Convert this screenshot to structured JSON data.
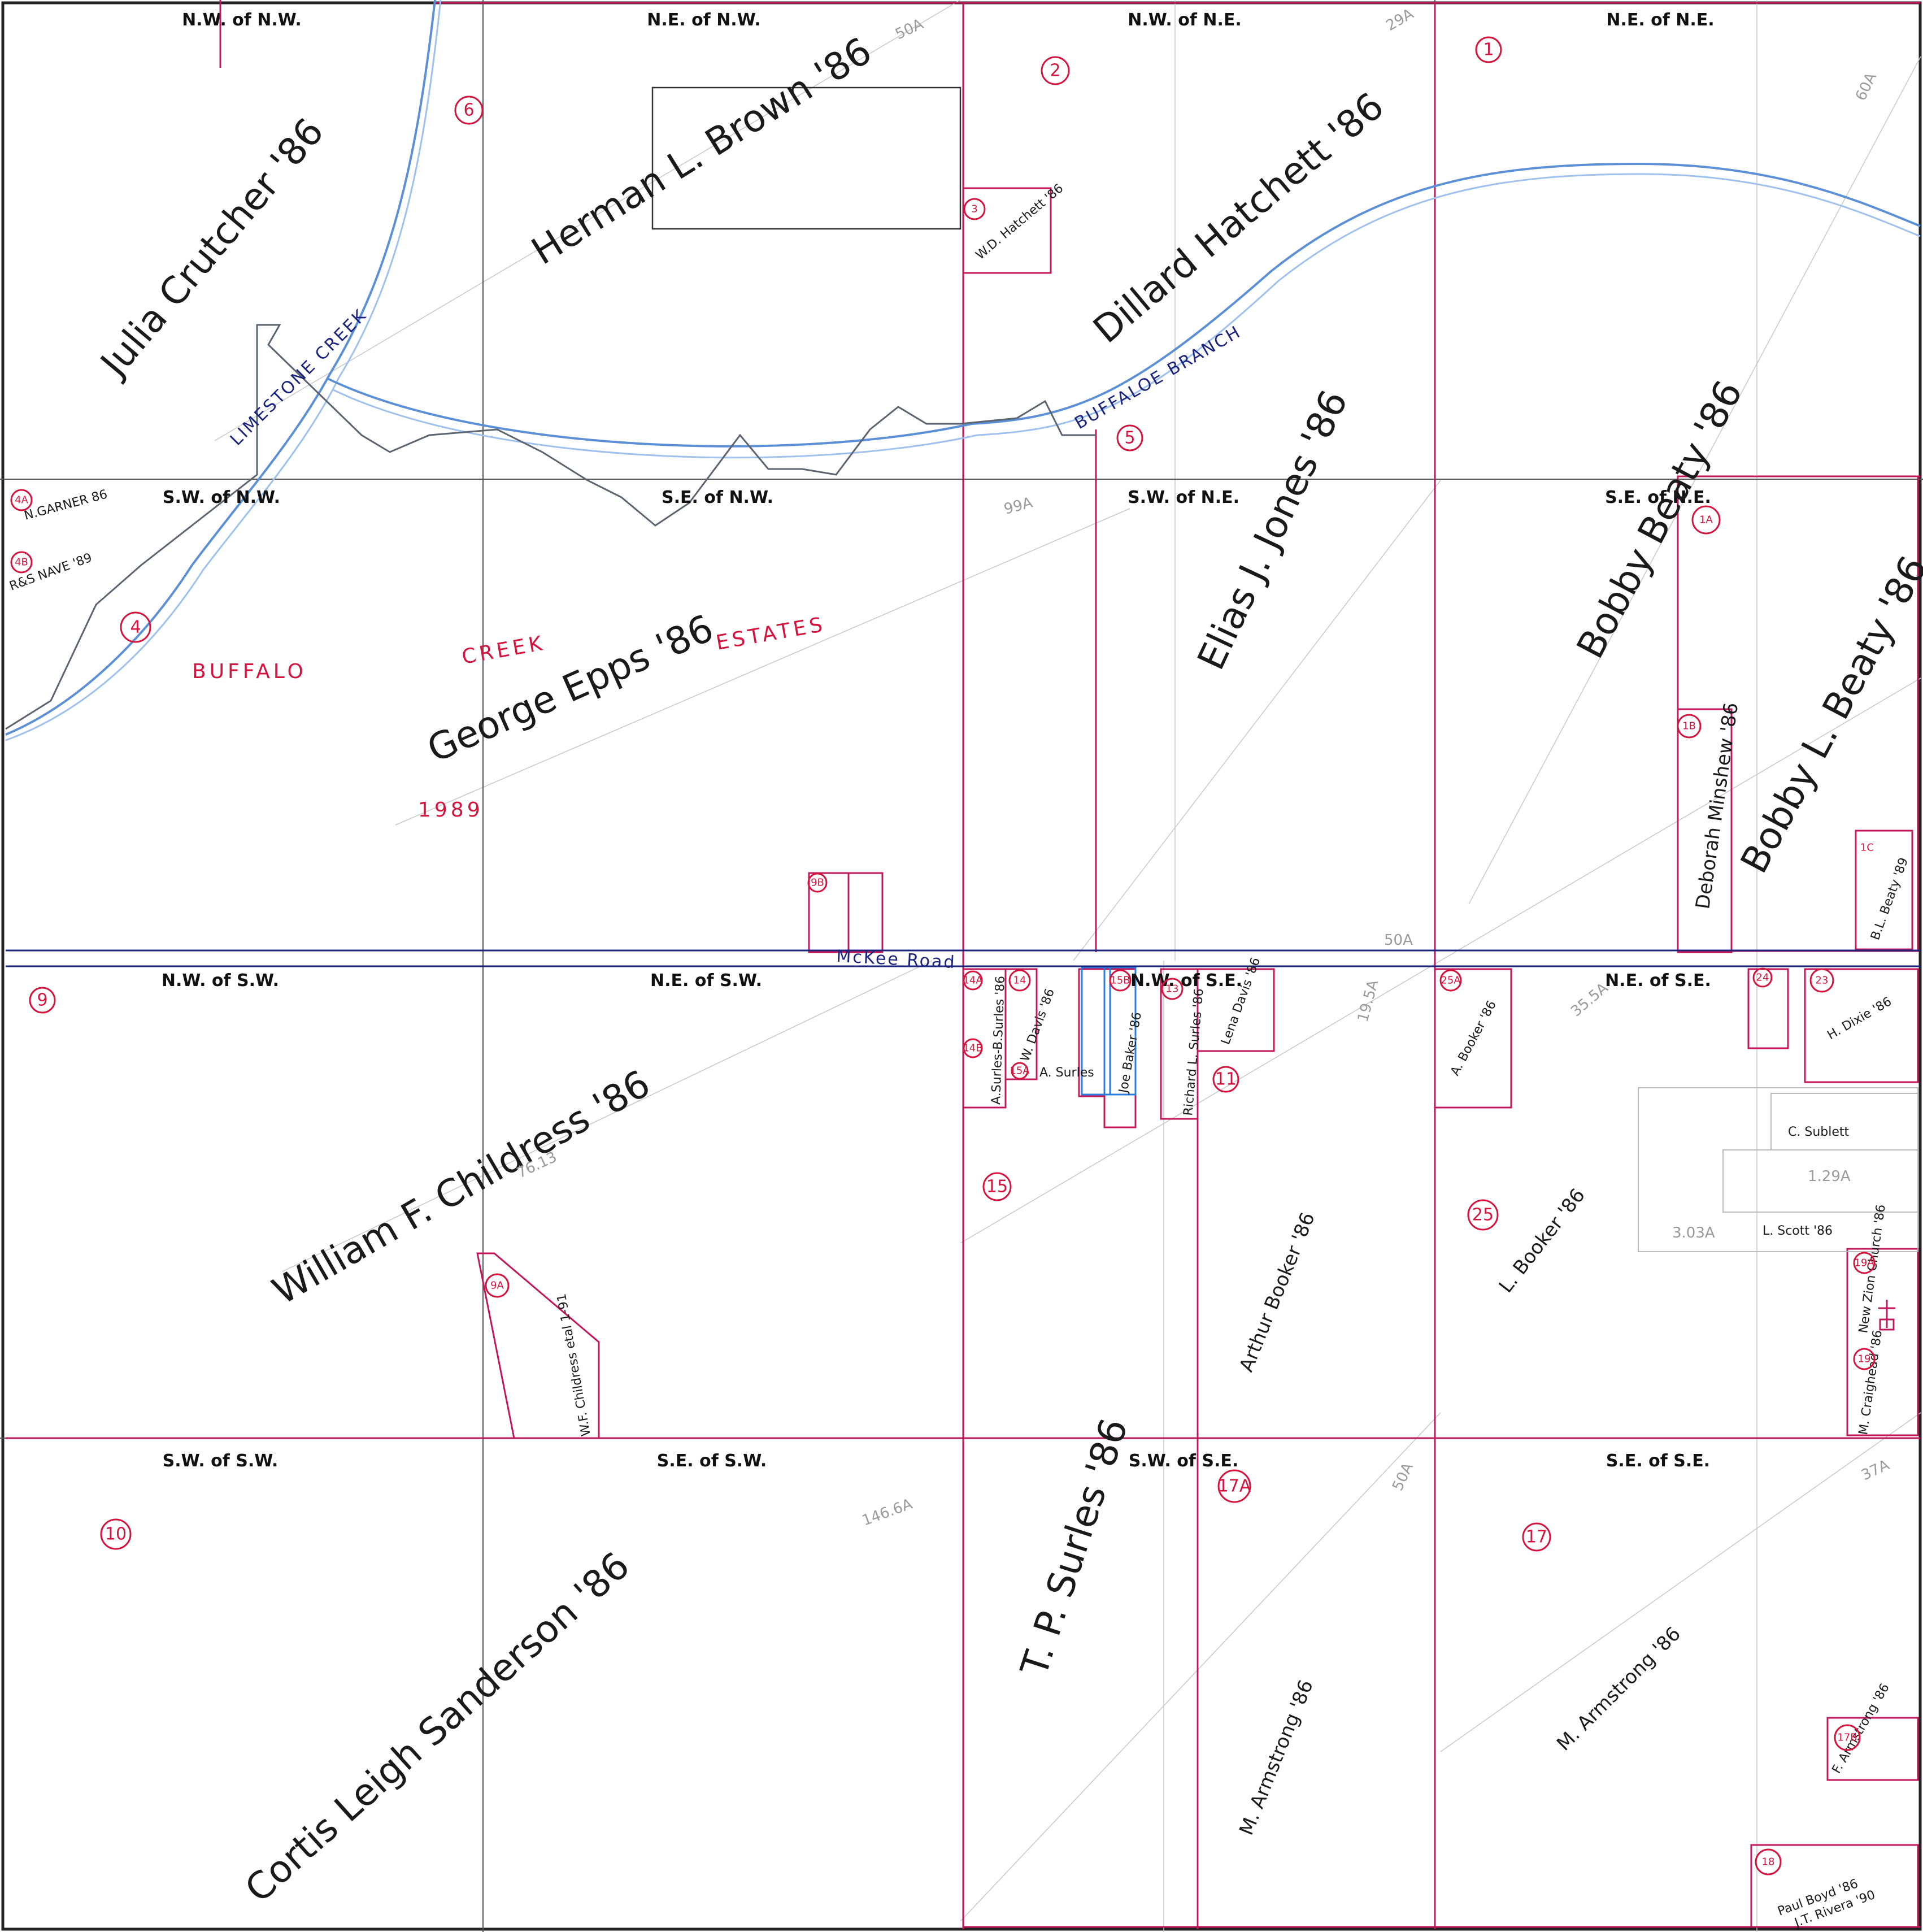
{
  "quarter_labels": {
    "nw_nw": "N.W. of N.W.",
    "ne_nw": "N.E. of N.W.",
    "nw_ne": "N.W. of N.E.",
    "ne_ne": "N.E. of N.E.",
    "sw_nw": "S.W. of N.W.",
    "se_nw": "S.E. of N.W.",
    "sw_ne": "S.W. of N.E.",
    "se_ne": "S.E. of N.E.",
    "nw_sw": "N.W. of S.W.",
    "ne_sw": "N.E. of S.W.",
    "nw_se": "N.W. of S.E.",
    "ne_se": "N.E. of S.E.",
    "sw_sw": "S.W. of S.W.",
    "se_sw": "S.E. of S.W.",
    "sw_se": "S.W. of S.E.",
    "se_se": "S.E. of S.E."
  },
  "owners": {
    "julia_crutcher": "Julia Crutcher '86",
    "herman_brown": "Herman L. Brown '86",
    "dillard_hatchett": "Dillard Hatchett '86",
    "wd_hatchett": "W.D. Hatchett '86",
    "elias_jones": "Elias J. Jones '86",
    "bobby_beaty": "Bobby Beaty '86",
    "bobby_l_beaty": "Bobby L. Beaty '86",
    "deborah_minshew": "Deborah Minshew '86",
    "bl_beaty": "B.L. Beaty '89",
    "george_epps": "George Epps '86",
    "n_garner": "N.GARNER 86",
    "rs_nave": "R&S NAVE '89",
    "william_childress": "William F. Childress '86",
    "wf_childress_small": "W.F. Childress etal 1-91",
    "cortis_sanderson": "Cortis Leigh Sanderson '86",
    "tp_surles": "T. P. Surles '86",
    "m_armstrong_sw": "M. Armstrong '86",
    "m_armstrong_se": "M. Armstrong '86",
    "arthur_booker": "Arthur Booker '86",
    "l_booker": "L. Booker '86",
    "a_booker": "A. Booker '86",
    "w_davis": "W. Davis '86",
    "a_surles": "A. Surles",
    "a_surles_b": "A.Surles-B.Surles '86",
    "joe_baker": "Joe Baker '86",
    "richard_surles": "Richard L. Surles '86",
    "lena_davis": "Lena Davis '86",
    "h_dixie": "H. Dixie '86",
    "l_scott": "L. Scott '86",
    "c_sublett": "C. Sublett",
    "f_armstrong": "F. Armstrong '86",
    "paul_boyd": "Paul Boyd '86",
    "jt_rivera": "J.T. Rivera '90",
    "new_zion": "New Zion Church '86",
    "m_craighead": "M. Craighead '86"
  },
  "features": {
    "limestone_creek": "LIMESTONE CREEK",
    "buffalo_branch": "BUFFALOE BRANCH",
    "mckee_road": "McKee Road"
  },
  "subdivision": {
    "word1": "BUFFALO",
    "word2": "CREEK",
    "word3": "ESTATES",
    "year": "1989"
  },
  "parcel_numbers": [
    "1",
    "1A",
    "1B",
    "1C",
    "2",
    "3",
    "4",
    "4A",
    "4B",
    "5",
    "6",
    "9",
    "9A",
    "9B",
    "10",
    "11",
    "13",
    "14",
    "14A",
    "14B",
    "15",
    "15A",
    "15B",
    "17",
    "17A",
    "17B",
    "18",
    "19",
    "19A",
    "23",
    "24",
    "25",
    "25A"
  ],
  "acreages": {
    "a50_top": "50A",
    "a29": "29A",
    "a60": "60A",
    "a99": "99A",
    "a50_mid": "50A",
    "a76": "76.13",
    "a146": "146.6A",
    "a50_sw": "50A",
    "a37": "37A",
    "a35": "35.5A",
    "a19": "19.5A",
    "a1_29": "1.29A",
    "a3_03": "3.03A"
  },
  "colors": {
    "parcel_red": "#c2185b",
    "number_red": "#d4143c",
    "ink_blue": "#1a237e",
    "creek_blue": "#5b8fd6"
  }
}
